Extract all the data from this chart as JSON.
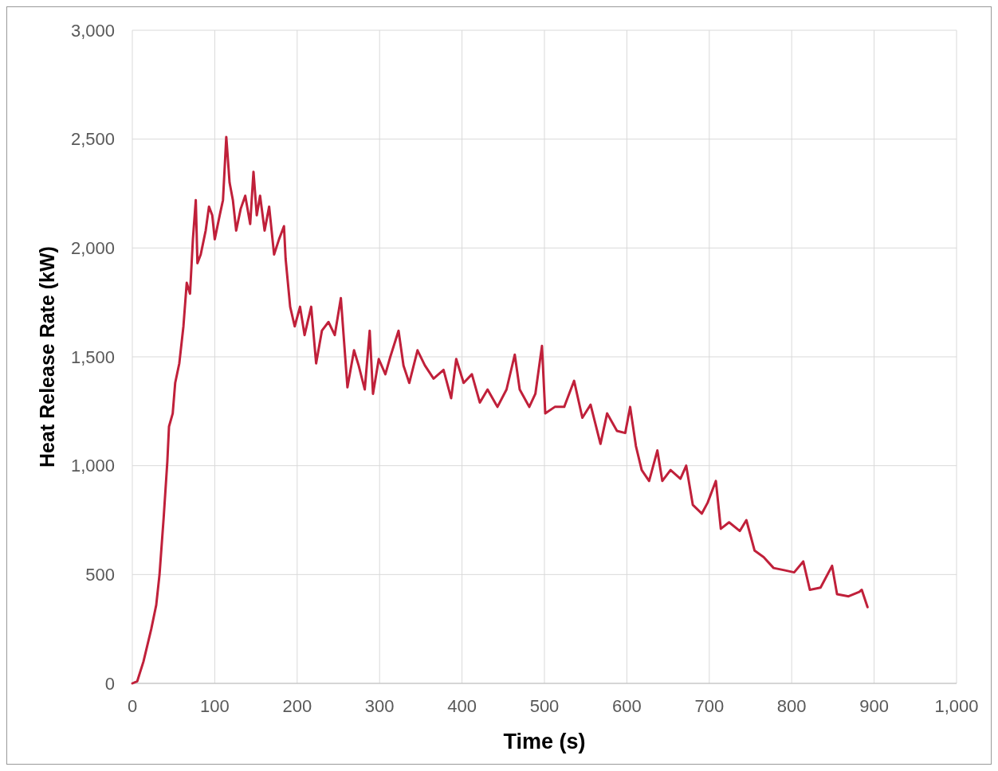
{
  "chart_data": {
    "type": "line",
    "xlabel": "Time (s)",
    "ylabel": "Heat Release Rate (kW)",
    "xlim": [
      0,
      1000
    ],
    "xticks": [
      0,
      100,
      200,
      300,
      400,
      500,
      600,
      700,
      800,
      900,
      {
        "value": 1000,
        "label": "1,000"
      }
    ],
    "ylim": [
      0,
      3000
    ],
    "yticks": [
      0,
      500,
      {
        "value": 1000,
        "label": "1,000"
      },
      {
        "value": 1500,
        "label": "1,500"
      },
      {
        "value": 2000,
        "label": "2,000"
      },
      {
        "value": 2500,
        "label": "2,500"
      },
      {
        "value": 3000,
        "label": "3,000"
      }
    ],
    "grid": true,
    "marker": "none",
    "line_style": "solid",
    "series": [
      {
        "color": "#c0203a",
        "x": [
          0,
          6,
          13.5,
          23,
          29,
          33,
          38,
          42.5,
          44.5,
          49,
          52,
          57,
          62,
          66,
          70,
          73.5,
          77,
          79,
          83,
          89,
          93,
          97,
          100,
          106,
          110,
          114,
          118,
          122,
          126,
          131.5,
          137,
          143,
          147,
          151,
          155,
          160.5,
          166,
          172,
          178,
          184,
          186,
          191.5,
          197,
          203.5,
          209,
          217,
          223,
          230,
          238,
          245.6,
          253,
          261,
          269,
          274.6,
          282,
          288,
          292,
          299,
          307,
          313,
          323,
          329,
          336,
          346,
          355,
          365.5,
          377.6,
          386.8,
          393,
          402,
          412,
          421.6,
          431,
          443,
          454,
          464,
          470,
          481.6,
          489,
          497,
          501,
          512.6,
          524,
          536,
          546,
          556,
          568,
          576,
          588,
          598,
          604,
          611,
          618,
          627,
          637,
          643,
          653,
          665,
          672,
          680,
          691,
          698,
          708,
          714,
          724,
          737,
          745,
          755,
          766,
          778,
          791,
          803,
          814,
          822,
          835,
          849,
          855,
          869,
          882,
          885,
          892
        ],
        "values": [
          0,
          10,
          100,
          250,
          360,
          500,
          760,
          1020,
          1180,
          1240,
          1380,
          1470,
          1640,
          1840,
          1790,
          2040,
          2220,
          1930,
          1970,
          2080,
          2190,
          2150,
          2040,
          2150,
          2220,
          2510,
          2300,
          2220,
          2080,
          2180,
          2240,
          2110,
          2350,
          2150,
          2240,
          2080,
          2190,
          1970,
          2040,
          2100,
          1950,
          1730,
          1640,
          1730,
          1600,
          1730,
          1470,
          1620,
          1660,
          1600,
          1770,
          1360,
          1530,
          1460,
          1350,
          1620,
          1330,
          1490,
          1420,
          1500,
          1620,
          1460,
          1380,
          1530,
          1460,
          1400,
          1440,
          1310,
          1490,
          1380,
          1420,
          1290,
          1350,
          1270,
          1350,
          1510,
          1350,
          1270,
          1330,
          1550,
          1240,
          1270,
          1270,
          1390,
          1220,
          1280,
          1100,
          1240,
          1160,
          1150,
          1270,
          1090,
          980,
          930,
          1070,
          930,
          980,
          940,
          1000,
          820,
          780,
          830,
          930,
          710,
          740,
          700,
          750,
          610,
          580,
          530,
          520,
          510,
          560,
          430,
          440,
          540,
          410,
          400,
          420,
          430,
          350
        ]
      }
    ]
  }
}
